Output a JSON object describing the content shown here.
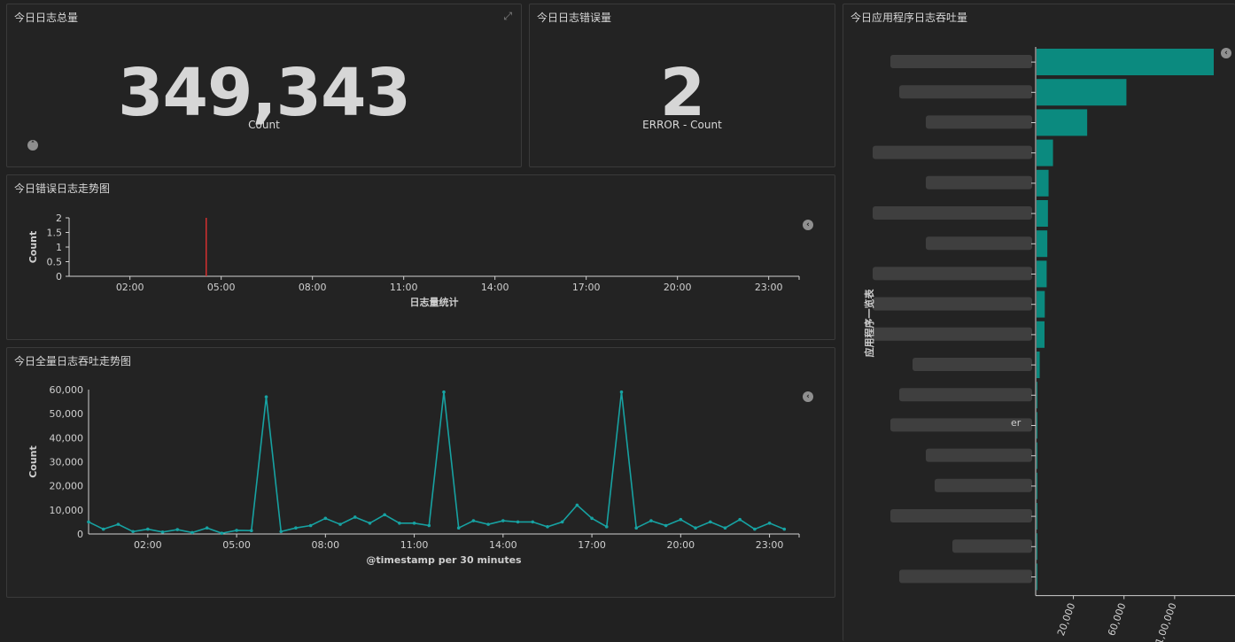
{
  "panels": {
    "total": {
      "title": "今日日志总量",
      "value": "349,343",
      "label": "Count"
    },
    "errors": {
      "title": "今日日志错误量",
      "value": "2",
      "label": "ERROR - Count"
    },
    "error_trend": {
      "title": "今日错误日志走势图"
    },
    "throughput_trend": {
      "title": "今日全量日志吞吐走势图"
    },
    "app_throughput": {
      "title": "今日应用程序日志吞吐量"
    }
  },
  "icons": {
    "expand": "expand-icon",
    "collapse": "chevron-up-circle-icon",
    "legend_toggle": "chevron-left-circle-icon"
  },
  "colors": {
    "teal": "#0b8a7f",
    "line": "#17a2a2",
    "error": "#d32f2f"
  },
  "chart_data": [
    {
      "id": "error_trend",
      "type": "bar",
      "ylabel": "Count",
      "xlabel": "日志量统计",
      "x_ticks": [
        "02:00",
        "05:00",
        "08:00",
        "11:00",
        "14:00",
        "17:00",
        "20:00",
        "23:00"
      ],
      "y_ticks": [
        "0",
        "0.5",
        "1",
        "1.5",
        "2"
      ],
      "ylim": [
        0,
        2
      ],
      "xlim_hours": [
        0,
        24
      ],
      "points": [
        {
          "hour": 4.5,
          "value": 2
        }
      ]
    },
    {
      "id": "throughput_trend",
      "type": "line",
      "ylabel": "Count",
      "xlabel": "@timestamp per 30 minutes",
      "x_ticks": [
        "02:00",
        "05:00",
        "08:00",
        "11:00",
        "14:00",
        "17:00",
        "20:00",
        "23:00"
      ],
      "y_ticks": [
        "0",
        "10,000",
        "20,000",
        "30,000",
        "40,000",
        "50,000",
        "60,000"
      ],
      "ylim": [
        0,
        60000
      ],
      "start_hour": 0,
      "step_hours": 0.5,
      "values": [
        5000,
        2000,
        4000,
        1000,
        2000,
        800,
        1800,
        600,
        2500,
        300,
        1500,
        1400,
        57000,
        1000,
        2500,
        3500,
        6500,
        4000,
        7000,
        4500,
        8000,
        4500,
        4500,
        3500,
        59000,
        2500,
        5500,
        4000,
        5500,
        5000,
        5000,
        3000,
        5000,
        12000,
        6500,
        3000,
        59000,
        2500,
        5500,
        3500,
        6000,
        2500,
        5000,
        2500,
        6000,
        2000,
        4500,
        2000
      ]
    },
    {
      "id": "app_throughput",
      "type": "bar",
      "orientation": "horizontal",
      "ylabel": "应用程序一览表",
      "x_ticks": [
        "20,000",
        "60,000",
        "1,00,000"
      ],
      "values": [
        140000,
        71000,
        40000,
        13000,
        9500,
        9000,
        8500,
        8000,
        6500,
        6300,
        2500,
        600,
        300,
        200,
        100,
        80,
        50,
        30
      ],
      "visible_fragment": "er"
    }
  ]
}
